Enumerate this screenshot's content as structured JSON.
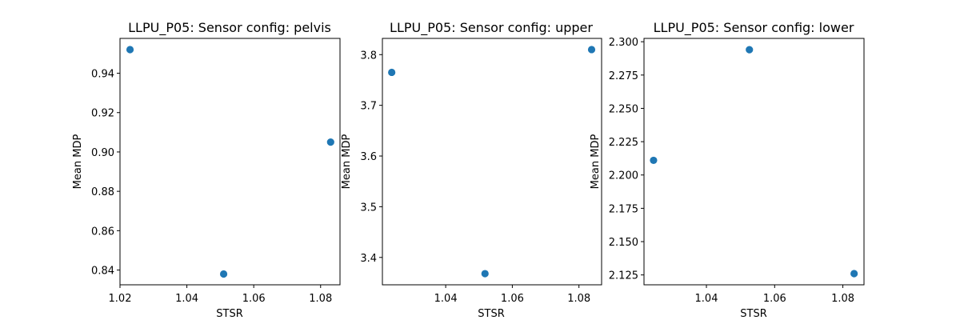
{
  "chart_data": [
    {
      "type": "scatter",
      "title": "LLPU_P05: Sensor config: pelvis",
      "xlabel": "STSR",
      "ylabel": "Mean MDP",
      "x": [
        1.023,
        1.051,
        1.083
      ],
      "y": [
        0.952,
        0.838,
        0.905
      ],
      "xlim": [
        1.02,
        1.0858
      ],
      "ylim": [
        0.8325,
        0.9577
      ],
      "xticks": [
        1.02,
        1.04,
        1.06,
        1.08
      ],
      "xtick_labels": [
        "1.02",
        "1.04",
        "1.06",
        "1.08"
      ],
      "yticks": [
        0.84,
        0.86,
        0.88,
        0.9,
        0.92,
        0.94
      ],
      "ytick_labels": [
        "0.84",
        "0.86",
        "0.88",
        "0.90",
        "0.92",
        "0.94"
      ],
      "color": "#1f77b4",
      "grid": false
    },
    {
      "type": "scatter",
      "title": "LLPU_P05: Sensor config: upper",
      "xlabel": "STSR",
      "ylabel": "Mean MDP",
      "x": [
        1.0238,
        1.0518,
        1.0838
      ],
      "y": [
        3.765,
        3.368,
        3.81
      ],
      "xlim": [
        1.021,
        1.0868
      ],
      "ylim": [
        3.346,
        3.832
      ],
      "xticks": [
        1.04,
        1.06,
        1.08
      ],
      "xtick_labels": [
        "1.04",
        "1.06",
        "1.08"
      ],
      "yticks": [
        3.4,
        3.5,
        3.6,
        3.7,
        3.8
      ],
      "ytick_labels": [
        "3.4",
        "3.5",
        "3.6",
        "3.7",
        "3.8"
      ],
      "color": "#1f77b4",
      "grid": false
    },
    {
      "type": "scatter",
      "title": "LLPU_P05: Sensor config: lower",
      "xlabel": "STSR",
      "ylabel": "Mean MDP",
      "x": [
        1.0245,
        1.0526,
        1.0833
      ],
      "y": [
        2.211,
        2.294,
        2.126
      ],
      "xlim": [
        1.0217,
        1.0862
      ],
      "ylim": [
        2.1176,
        2.3025
      ],
      "xticks": [
        1.04,
        1.06,
        1.08
      ],
      "xtick_labels": [
        "1.04",
        "1.06",
        "1.08"
      ],
      "yticks": [
        2.125,
        2.15,
        2.175,
        2.2,
        2.225,
        2.25,
        2.275,
        2.3
      ],
      "ytick_labels": [
        "2.125",
        "2.150",
        "2.175",
        "2.200",
        "2.225",
        "2.250",
        "2.275",
        "2.300"
      ],
      "color": "#1f77b4",
      "grid": false
    }
  ]
}
